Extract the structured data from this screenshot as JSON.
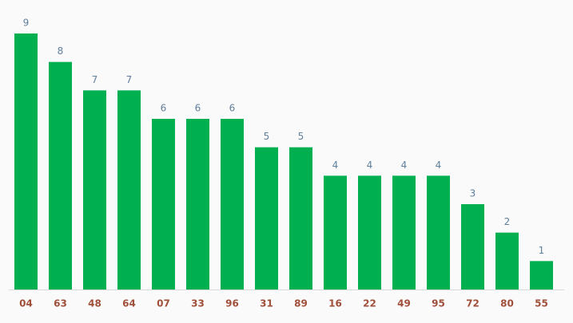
{
  "chart_data": {
    "type": "bar",
    "categories": [
      "04",
      "63",
      "48",
      "64",
      "07",
      "33",
      "96",
      "31",
      "89",
      "16",
      "22",
      "49",
      "95",
      "72",
      "80",
      "55"
    ],
    "values": [
      9,
      8,
      7,
      7,
      6,
      6,
      6,
      5,
      5,
      4,
      4,
      4,
      4,
      3,
      2,
      1
    ],
    "color": "#00b050"
  }
}
